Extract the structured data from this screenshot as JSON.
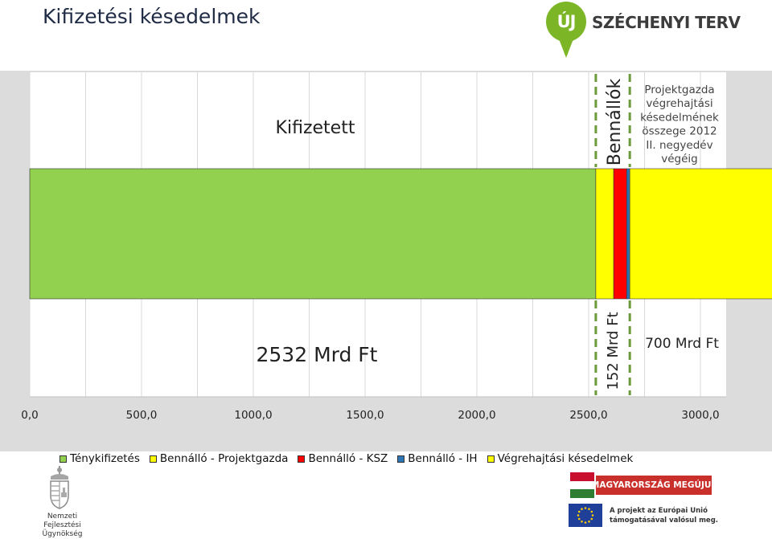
{
  "title": "Kifizetési késedelmek",
  "logo_szechenyi": {
    "badge": "ÚJ",
    "text": "SZÉCHENYI TERV"
  },
  "chart_data": {
    "type": "bar",
    "orientation": "horizontal-stacked",
    "series": [
      {
        "name": "Ténykifizetés",
        "value": 2532,
        "color": "#92d050"
      },
      {
        "name": "Bennálló - Projektgazda",
        "value": 80,
        "color": "#ffff00"
      },
      {
        "name": "Bennálló - KSZ",
        "value": 58,
        "color": "#ff0000"
      },
      {
        "name": "Bennálló - IH",
        "value": 14,
        "color": "#2e75b6"
      },
      {
        "name": "Végrehajtási késedelmek",
        "value": 700,
        "color": "#ffff00"
      }
    ],
    "xlim": [
      0,
      3000
    ],
    "xticks": [
      "0,0",
      "500,0",
      "1000,0",
      "1500,0",
      "2000,0",
      "2500,0",
      "3000,0"
    ],
    "grid": true,
    "legend_position": "bottom",
    "annotations": {
      "paid_header": "Kifizetett",
      "pending_header": "Bennállók",
      "delay_header": [
        "Projektgazda",
        "végrehajtási",
        "késedelmének",
        "összege 2012",
        "II. negyedév",
        "végéig"
      ],
      "paid_total": "2532 Mrd Ft",
      "pending_total": "152 Mrd Ft",
      "delay_total": "700 Mrd Ft"
    }
  },
  "legend": [
    {
      "label": "Ténykifizetés",
      "color": "#92d050"
    },
    {
      "label": "Bennálló - Projektgazda",
      "color": "#ffff00"
    },
    {
      "label": "Bennálló - KSZ",
      "color": "#ff0000"
    },
    {
      "label": "Bennálló - IH",
      "color": "#2e75b6"
    },
    {
      "label": "Végrehajtási késedelmek",
      "color": "#ffff00"
    }
  ],
  "logo_nfu": {
    "line1": "Nemzeti",
    "line2": "Fejlesztési Ügynökség"
  },
  "logo_mm": {
    "text": "MAGYARORSZÁG MEGÚJUL"
  },
  "logo_eu": {
    "line1": "A projekt az Európai Unió",
    "line2": "támogatásával valósul meg."
  }
}
